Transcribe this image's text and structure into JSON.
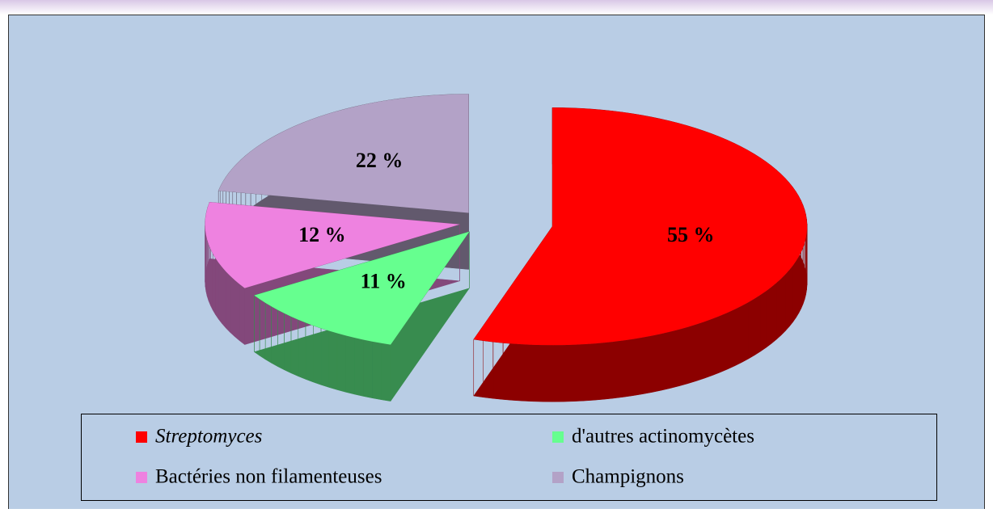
{
  "chart_data": {
    "type": "pie",
    "categories": [
      "Streptomyces",
      "d'autres actinomycètes",
      "Bactéries non filamenteuses",
      "Champignons"
    ],
    "values": [
      55,
      11,
      12,
      22
    ],
    "value_labels": [
      "55 %",
      "11 %",
      "12 %",
      "22 %"
    ],
    "colors": [
      "#ff0000",
      "#66ff8f",
      "#ee82e0",
      "#b3a2c7"
    ],
    "legend": "bottom"
  }
}
